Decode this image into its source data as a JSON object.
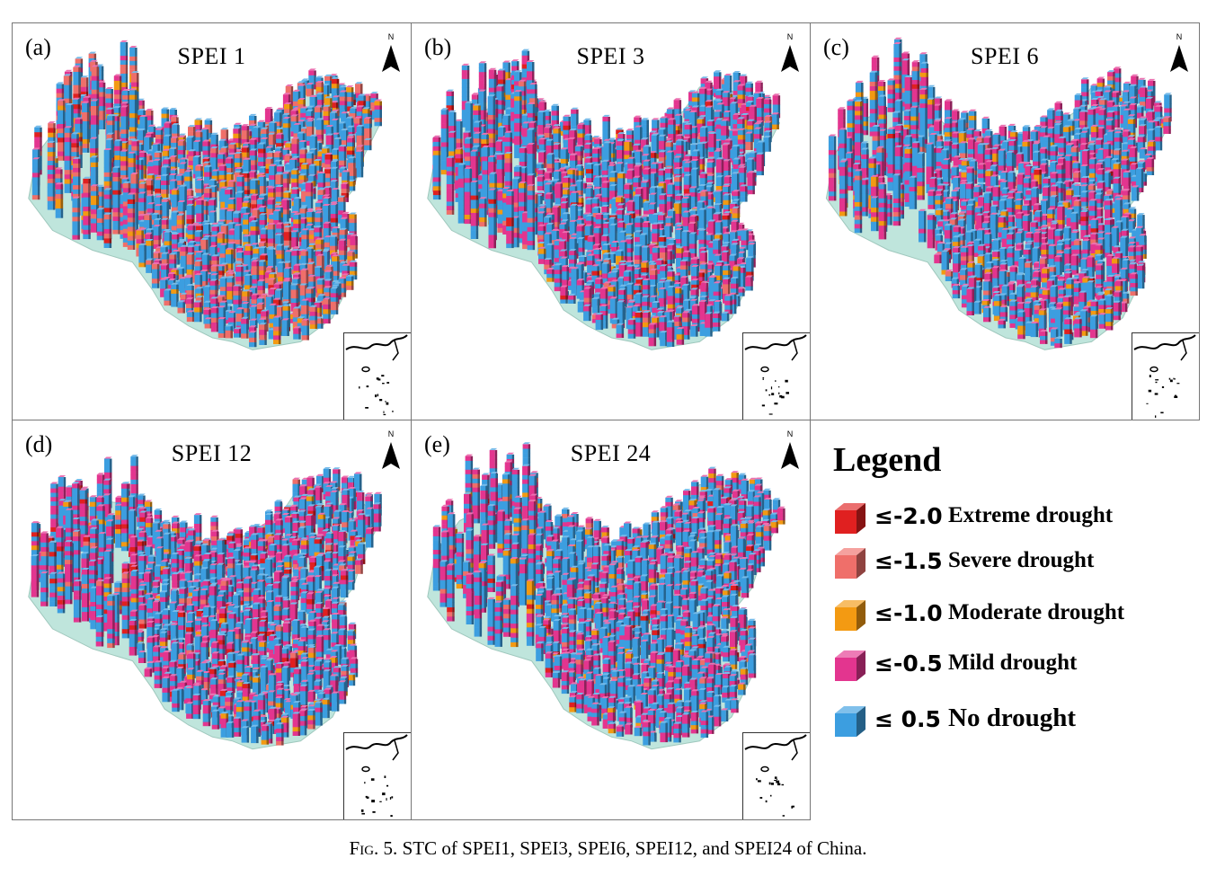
{
  "panels": [
    {
      "letter": "(a)",
      "title": "SPEI 1",
      "mix": [
        0.02,
        0.22,
        0.08,
        0.18,
        0.5
      ]
    },
    {
      "letter": "(b)",
      "title": "SPEI 3",
      "mix": [
        0.02,
        0.04,
        0.05,
        0.34,
        0.55
      ]
    },
    {
      "letter": "(c)",
      "title": "SPEI 6",
      "mix": [
        0.01,
        0.03,
        0.05,
        0.36,
        0.55
      ]
    },
    {
      "letter": "(d)",
      "title": "SPEI 12",
      "mix": [
        0.04,
        0.03,
        0.04,
        0.34,
        0.55
      ]
    },
    {
      "letter": "(e)",
      "title": "SPEI 24",
      "mix": [
        0.01,
        0.03,
        0.05,
        0.3,
        0.61
      ]
    }
  ],
  "north_label": "N",
  "legend": {
    "title": "Legend",
    "items": [
      {
        "value": "≤-2.0",
        "label": "Extreme drought",
        "color": "#e02020"
      },
      {
        "value": "≤-1.5",
        "label": "Severe drought",
        "color": "#ef6f6a"
      },
      {
        "value": "≤-1.0",
        "label": "Moderate drought",
        "color": "#f39a12"
      },
      {
        "value": "≤-0.5",
        "label": "Mild drought",
        "color": "#e3358f"
      },
      {
        "value": "≤  0.5",
        "label": "No drought",
        "color": "#3c9ee0"
      }
    ]
  },
  "colors": {
    "map_base": "#bfe5dc",
    "map_outline": "#9fc8bd"
  },
  "caption": {
    "prefix": "Fig. 5.",
    "text": "STC of SPEI1, SPEI3, SPEI6, SPEI12, and SPEI24 of China."
  }
}
